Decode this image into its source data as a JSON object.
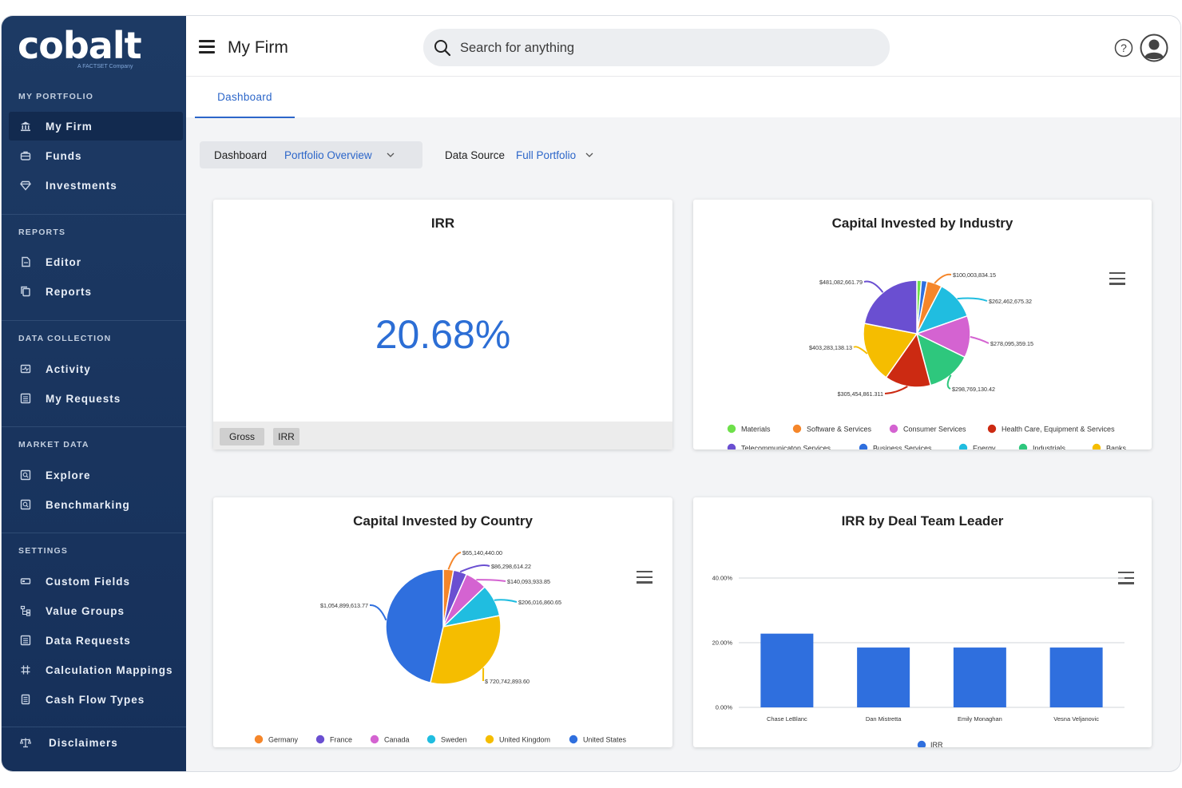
{
  "sidebar": {
    "logo": "cobalt",
    "logo_sub": "A FACTSET Company",
    "sections": [
      {
        "title": "MY PORTFOLIO",
        "items": [
          {
            "label": "My Firm",
            "icon": "bank-icon",
            "active": true
          },
          {
            "label": "Funds",
            "icon": "briefcase-icon"
          },
          {
            "label": "Investments",
            "icon": "diamond-icon"
          }
        ]
      },
      {
        "title": "REPORTS",
        "items": [
          {
            "label": "Editor",
            "icon": "document-icon"
          },
          {
            "label": "Reports",
            "icon": "copy-icon"
          }
        ]
      },
      {
        "title": "DATA COLLECTION",
        "items": [
          {
            "label": "Activity",
            "icon": "activity-icon"
          },
          {
            "label": "My Requests",
            "icon": "list-icon"
          }
        ]
      },
      {
        "title": "MARKET DATA",
        "items": [
          {
            "label": "Explore",
            "icon": "search-box-icon"
          },
          {
            "label": "Benchmarking",
            "icon": "search-box-icon"
          }
        ]
      },
      {
        "title": "SETTINGS",
        "items": [
          {
            "label": "Custom Fields",
            "icon": "fields-icon"
          },
          {
            "label": "Value Groups",
            "icon": "hierarchy-icon"
          },
          {
            "label": "Data Requests",
            "icon": "list-icon"
          },
          {
            "label": "Calculation Mappings",
            "icon": "hash-icon"
          },
          {
            "label": "Cash Flow Types",
            "icon": "ledger-icon"
          }
        ]
      }
    ],
    "disclaimers": "Disclaimers"
  },
  "header": {
    "title": "My Firm",
    "search_placeholder": "Search for anything"
  },
  "tabs": [
    {
      "label": "Dashboard",
      "active": true
    }
  ],
  "filters": {
    "dashboard_label": "Dashboard",
    "dashboard_value": "Portfolio Overview",
    "source_label": "Data Source",
    "source_value": "Full Portfolio"
  },
  "irr_card": {
    "title": "IRR",
    "value": "20.68%",
    "chips": [
      "Gross",
      "IRR"
    ]
  },
  "colors": {
    "green": "#6ee04a",
    "orange": "#f5862a",
    "magenta": "#d463d1",
    "red": "#cc2a12",
    "purple": "#6a4fd1",
    "blue": "#2f6fde",
    "cyan": "#20bde0",
    "teal": "#2ec77d",
    "yellow": "#f5bd00"
  },
  "industry_card": {
    "title": "Capital Invested by Industry",
    "chart_data": {
      "type": "pie",
      "slices": [
        {
          "name": "Materials",
          "value": 30000000,
          "color": "#6ee04a"
        },
        {
          "name": "Business Services",
          "value": 38000000,
          "color": "#2f6fde"
        },
        {
          "name": "Software & Services",
          "value": 100003834.15,
          "label": "$100,003,834.15",
          "color": "#f5862a"
        },
        {
          "name": "Energy",
          "value": 262462675.32,
          "label": "$262,462,675.32",
          "color": "#20bde0"
        },
        {
          "name": "Consumer Services",
          "value": 278095359.15,
          "label": "$278,095,359.15",
          "color": "#d463d1"
        },
        {
          "name": "Industrials",
          "value": 298769130.42,
          "label": "$298,769,130.42",
          "color": "#2ec77d"
        },
        {
          "name": "Health Care, Equipment & Services",
          "value": 305454861.311,
          "label": "$305,454,861.311",
          "color": "#cc2a12"
        },
        {
          "name": "Banks",
          "value": 403283138.13,
          "label": "$403,283,138.13",
          "color": "#f5bd00"
        },
        {
          "name": "Telecommunicaton Services",
          "value": 481082661.79,
          "label": "$481,082,661.79",
          "color": "#6a4fd1"
        }
      ],
      "legend": [
        {
          "name": "Materials",
          "color": "#6ee04a"
        },
        {
          "name": "Software & Services",
          "color": "#f5862a"
        },
        {
          "name": "Consumer Services",
          "color": "#d463d1"
        },
        {
          "name": "Health Care, Equipment & Services",
          "color": "#cc2a12"
        },
        {
          "name": "Telecommunicaton Services",
          "color": "#6a4fd1"
        },
        {
          "name": "Business Services",
          "color": "#2f6fde"
        },
        {
          "name": "Energy",
          "color": "#20bde0"
        },
        {
          "name": "Industrials",
          "color": "#2ec77d"
        },
        {
          "name": "Banks",
          "color": "#f5bd00"
        }
      ]
    }
  },
  "country_card": {
    "title": "Capital Invested by Country",
    "chart_data": {
      "type": "pie",
      "slices": [
        {
          "name": "Germany",
          "value": 65140440.0,
          "label": "$65,140,440.00",
          "color": "#f5862a"
        },
        {
          "name": "France",
          "value": 86298614.22,
          "label": "$86,298,614.22",
          "color": "#6a4fd1"
        },
        {
          "name": "Canada",
          "value": 140093933.85,
          "label": "$140,093,933.85",
          "color": "#d463d1"
        },
        {
          "name": "Sweden",
          "value": 206016860.65,
          "label": "$206,016,860.65",
          "color": "#20bde0"
        },
        {
          "name": "United Kingdom",
          "value": 720742893.6,
          "label": "$ 720,742,893.60",
          "color": "#f5bd00"
        },
        {
          "name": "United States",
          "value": 1054899613.77,
          "label": "$1,054,899,613.77",
          "color": "#2f6fde"
        }
      ],
      "legend": [
        {
          "name": "Germany",
          "color": "#f5862a"
        },
        {
          "name": "France",
          "color": "#6a4fd1"
        },
        {
          "name": "Canada",
          "color": "#d463d1"
        },
        {
          "name": "Sweden",
          "color": "#20bde0"
        },
        {
          "name": "United Kingdom",
          "color": "#f5bd00"
        },
        {
          "name": "United States",
          "color": "#2f6fde"
        }
      ]
    }
  },
  "deal_card": {
    "title": "IRR by Deal Team Leader",
    "chart_data": {
      "type": "bar",
      "categories": [
        "Chase LeBlanc",
        "Dan Mistretta",
        "Emily Monaghan",
        "Vesna Veljanovic"
      ],
      "series": [
        {
          "name": "IRR",
          "values": [
            22.8,
            18.5,
            18.5,
            18.5
          ],
          "color": "#2f6fde"
        }
      ],
      "ylim": [
        0,
        40
      ],
      "yticks": [
        "0.00%",
        "20.00%",
        "40.00%"
      ],
      "yticks_values": [
        0,
        20,
        40
      ]
    }
  }
}
